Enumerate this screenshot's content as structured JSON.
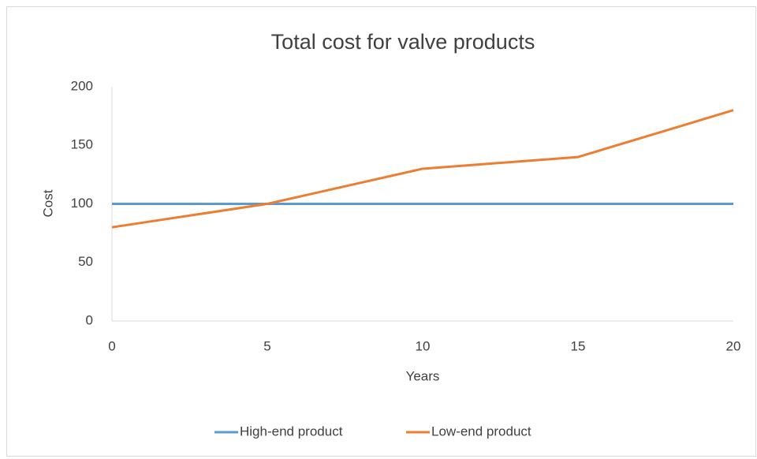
{
  "chart_data": {
    "type": "line",
    "title": "Total cost for valve products",
    "x_label": "Years",
    "y_label": "Cost",
    "x": [
      0,
      5,
      10,
      15,
      20
    ],
    "series": [
      {
        "name": "High-end product",
        "color": "#5b9bd5",
        "values": [
          100,
          100,
          100,
          100,
          100
        ]
      },
      {
        "name": "Low-end product",
        "color": "#ed7d31",
        "values": [
          80,
          100,
          130,
          140,
          180
        ]
      }
    ],
    "xlim": [
      0,
      20
    ],
    "xticks": [
      0,
      5,
      10,
      15,
      20
    ],
    "ylim": [
      0,
      200
    ],
    "yticks": [
      0,
      50,
      100,
      150,
      200
    ],
    "grid": false,
    "legend": "bottom"
  }
}
